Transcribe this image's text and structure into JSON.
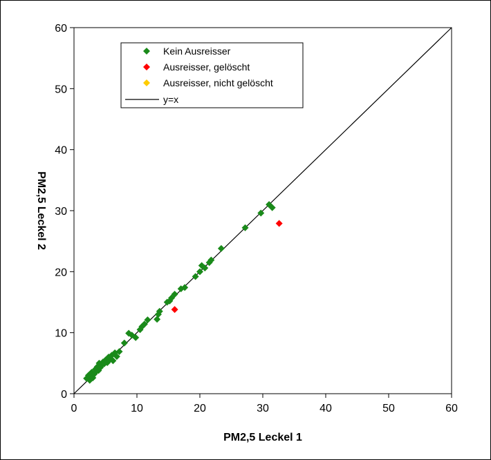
{
  "chart_data": {
    "type": "scatter",
    "title": "",
    "xlabel": "PM2,5 Leckel 1",
    "ylabel": "PM2,5 Leckel 2",
    "xlim": [
      0,
      60
    ],
    "ylim": [
      0,
      60
    ],
    "xticks": [
      "0",
      "10",
      "20",
      "30",
      "40",
      "50",
      "60"
    ],
    "yticks": [
      "0",
      "10",
      "20",
      "30",
      "40",
      "50",
      "60"
    ],
    "grid": false,
    "legend_position": "top-left",
    "colors": {
      "kein": "#1a8a1a",
      "geloescht": "#ff0000",
      "nicht_geloescht": "#ffcc00",
      "line": "#000000"
    },
    "series": [
      {
        "name": "Kein Ausreisser",
        "points": [
          [
            2.0,
            2.5
          ],
          [
            2.3,
            3.0
          ],
          [
            2.5,
            2.2
          ],
          [
            2.7,
            2.8
          ],
          [
            2.8,
            3.5
          ],
          [
            3.0,
            2.6
          ],
          [
            3.2,
            3.2
          ],
          [
            3.4,
            4.0
          ],
          [
            3.5,
            3.6
          ],
          [
            3.7,
            4.4
          ],
          [
            3.9,
            3.8
          ],
          [
            4.0,
            5.0
          ],
          [
            4.2,
            4.3
          ],
          [
            4.4,
            4.7
          ],
          [
            4.6,
            5.2
          ],
          [
            4.8,
            4.9
          ],
          [
            5.0,
            5.5
          ],
          [
            5.3,
            5.1
          ],
          [
            5.5,
            6.0
          ],
          [
            5.7,
            5.6
          ],
          [
            6.0,
            6.3
          ],
          [
            6.2,
            5.4
          ],
          [
            6.5,
            6.7
          ],
          [
            6.8,
            6.1
          ],
          [
            7.2,
            6.9
          ],
          [
            8.0,
            8.3
          ],
          [
            8.7,
            9.9
          ],
          [
            9.2,
            9.6
          ],
          [
            9.8,
            9.2
          ],
          [
            10.5,
            10.5
          ],
          [
            10.8,
            11.0
          ],
          [
            11.2,
            11.4
          ],
          [
            11.7,
            12.1
          ],
          [
            13.2,
            12.2
          ],
          [
            13.4,
            13.0
          ],
          [
            13.6,
            13.5
          ],
          [
            14.8,
            15.0
          ],
          [
            15.2,
            15.2
          ],
          [
            15.5,
            15.7
          ],
          [
            16.0,
            16.3
          ],
          [
            17.0,
            17.2
          ],
          [
            17.6,
            17.4
          ],
          [
            19.3,
            19.2
          ],
          [
            20.0,
            20.0
          ],
          [
            20.3,
            21.0
          ],
          [
            20.8,
            20.6
          ],
          [
            21.5,
            21.5
          ],
          [
            21.8,
            21.9
          ],
          [
            23.4,
            23.8
          ],
          [
            27.2,
            27.2
          ],
          [
            29.7,
            29.6
          ],
          [
            31.0,
            31.0
          ],
          [
            31.5,
            30.5
          ]
        ]
      },
      {
        "name": "Ausreisser, gelöscht",
        "points": [
          [
            16.0,
            13.8
          ],
          [
            32.6,
            27.9
          ]
        ]
      },
      {
        "name": "Ausreisser, nicht gelöscht",
        "points": []
      }
    ],
    "reference_line": {
      "name": "y=x",
      "points": [
        [
          0,
          0
        ],
        [
          60,
          60
        ]
      ]
    }
  }
}
